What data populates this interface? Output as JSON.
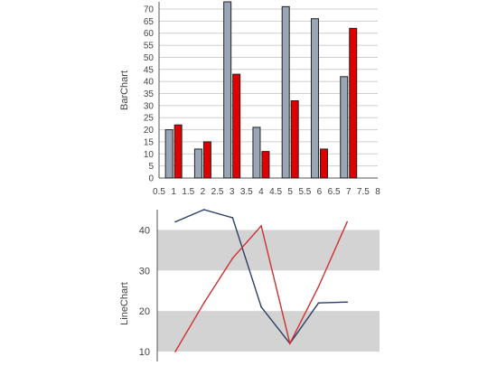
{
  "chart_data": [
    {
      "type": "bar",
      "ylabel": "BarChart",
      "ylim": [
        0,
        73
      ],
      "yticks": [
        0,
        5,
        10,
        15,
        20,
        25,
        30,
        35,
        40,
        45,
        50,
        55,
        60,
        65,
        70
      ],
      "xlim": [
        0.5,
        8
      ],
      "xticks": [
        "0.5",
        "1",
        "1.5",
        "2",
        "2.5",
        "3",
        "3.5",
        "4",
        "4.5",
        "5",
        "5.5",
        "6",
        "6.5",
        "7",
        "7.5",
        "8"
      ],
      "categories": [
        1,
        2,
        3,
        4,
        5,
        6,
        7
      ],
      "grid": "horizontal",
      "series": [
        {
          "values": [
            20,
            12,
            73,
            21,
            71,
            66,
            42
          ],
          "color": "#9aa6b8"
        },
        {
          "values": [
            22,
            15,
            43,
            11,
            32,
            12,
            62
          ],
          "color": "#e00000"
        }
      ]
    },
    {
      "type": "line",
      "ylabel": "LineChart",
      "ylim": [
        8,
        45
      ],
      "yticks": [
        10,
        20,
        30,
        40
      ],
      "bands": [
        [
          10,
          20
        ],
        [
          30,
          40
        ]
      ],
      "band_color": "#d3d3d3",
      "x": [
        1,
        2,
        3,
        4,
        5,
        6,
        7
      ],
      "series": [
        {
          "values": [
            42,
            45,
            43,
            21,
            12,
            22,
            22.2
          ],
          "color": "#2a3f66"
        },
        {
          "values": [
            10,
            22,
            33,
            41,
            12,
            26,
            42
          ],
          "color": "#d03030"
        }
      ]
    }
  ]
}
